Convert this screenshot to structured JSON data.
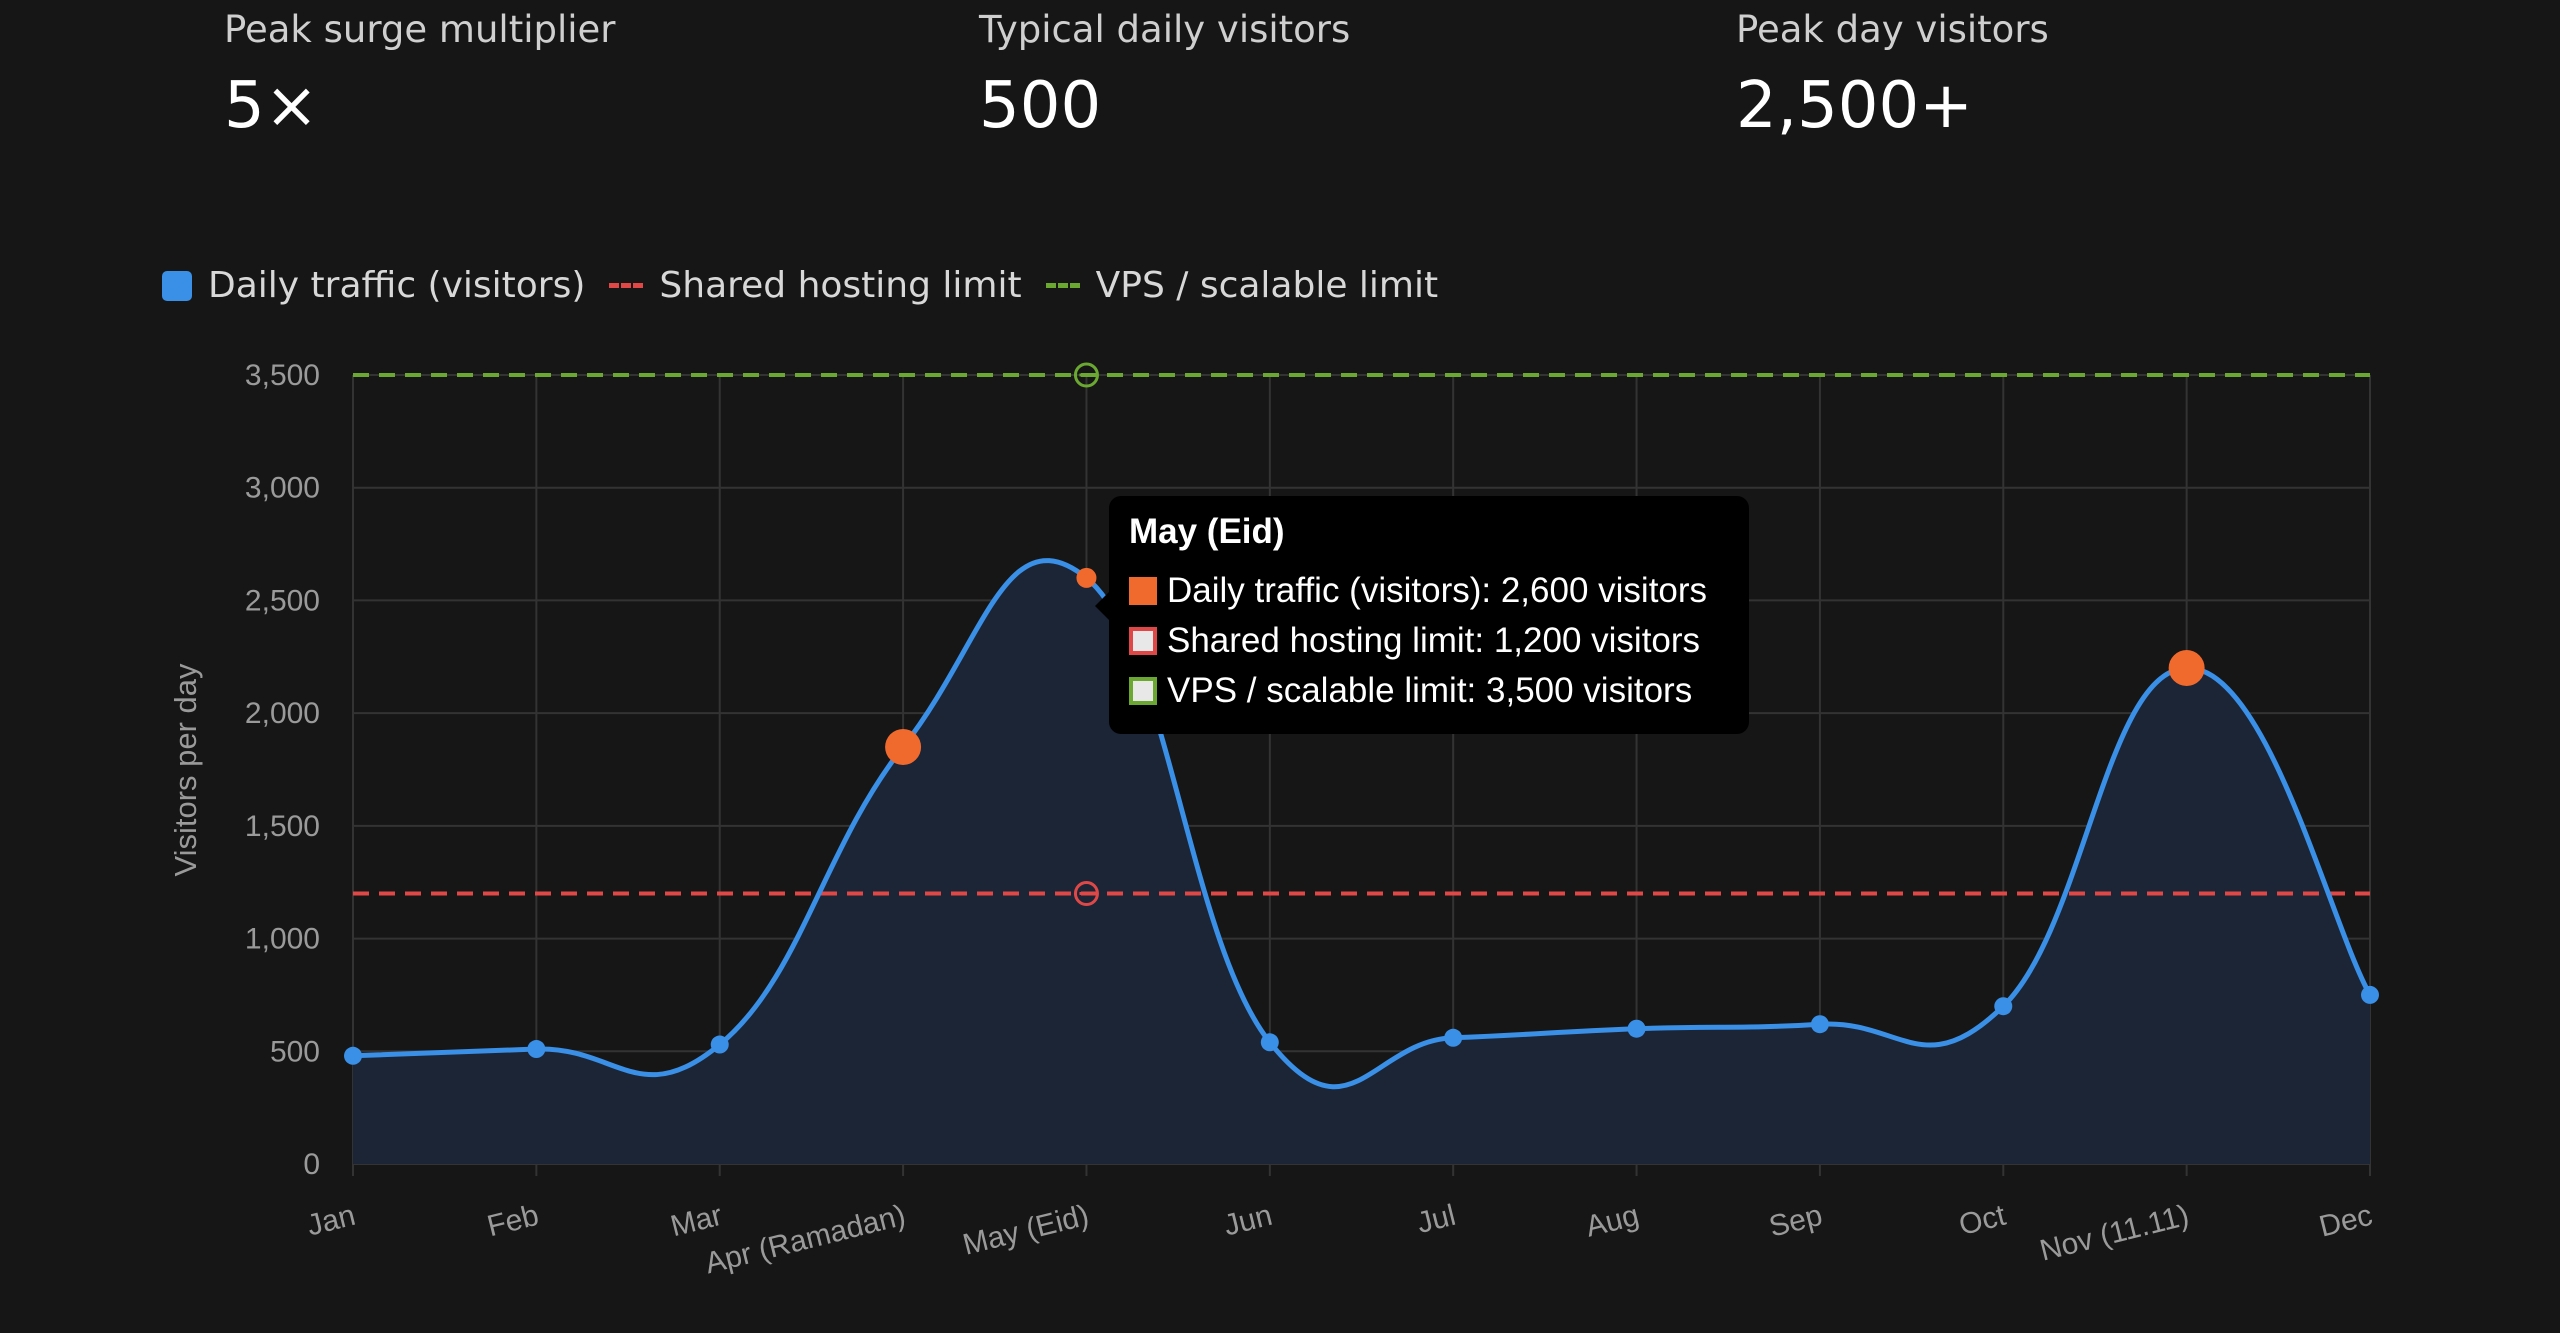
{
  "stats": [
    {
      "label": "Peak surge multiplier",
      "value": "5×"
    },
    {
      "label": "Typical daily visitors",
      "value": "500"
    },
    {
      "label": "Peak day visitors",
      "value": "2,500+"
    }
  ],
  "legend": [
    {
      "label": "Daily traffic (visitors)",
      "color": "#3a8fe6",
      "style": "box"
    },
    {
      "label": "Shared hosting limit",
      "color": "#e04848",
      "style": "dashed"
    },
    {
      "label": "VPS / scalable limit",
      "color": "#6aa832",
      "style": "dashed"
    }
  ],
  "tooltip": {
    "title": "May (Eid)",
    "rows": [
      {
        "text": "Daily traffic (visitors): 2,600 visitors",
        "fill": "#f06a2e",
        "border": "#f06a2e"
      },
      {
        "text": "Shared hosting limit: 1,200 visitors",
        "fill": "#e8e8e8",
        "border": "#e04848"
      },
      {
        "text": "VPS / scalable limit: 3,500 visitors",
        "fill": "#e8e8e8",
        "border": "#6aa832"
      }
    ]
  },
  "chart_data": {
    "type": "line",
    "categories": [
      "Jan",
      "Feb",
      "Mar",
      "Apr (Ramadan)",
      "May (Eid)",
      "Jun",
      "Jul",
      "Aug",
      "Sep",
      "Oct",
      "Nov (11.11)",
      "Dec"
    ],
    "series": [
      {
        "name": "Daily traffic (visitors)",
        "values": [
          480,
          510,
          530,
          1850,
          2600,
          540,
          560,
          600,
          620,
          700,
          2200,
          750
        ],
        "color": "#3a8fe6",
        "fill": "#1b2536",
        "highlight": [
          3,
          4,
          10
        ],
        "highlight_color": "#f06a2e"
      },
      {
        "name": "Shared hosting limit",
        "values": [
          1200,
          1200,
          1200,
          1200,
          1200,
          1200,
          1200,
          1200,
          1200,
          1200,
          1200,
          1200
        ],
        "color": "#e04848",
        "dashed": true
      },
      {
        "name": "VPS / scalable limit",
        "values": [
          3500,
          3500,
          3500,
          3500,
          3500,
          3500,
          3500,
          3500,
          3500,
          3500,
          3500,
          3500
        ],
        "color": "#6aa832",
        "dashed": true
      }
    ],
    "ylabel": "Visitors per day",
    "ylim": [
      0,
      3500
    ],
    "yticks": [
      0,
      500,
      1000,
      1500,
      2000,
      2500,
      3000,
      3500
    ],
    "ytick_labels": [
      "0",
      "500",
      "1,000",
      "1,500",
      "2,000",
      "2,500",
      "3,000",
      "3,500"
    ],
    "grid": true,
    "active_index": 4
  }
}
